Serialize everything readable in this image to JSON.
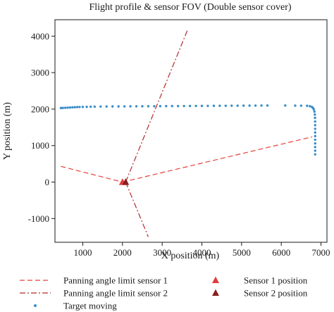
{
  "chart_data": {
    "type": "line",
    "title": "Flight profile & sensor FOV (Double sensor cover)",
    "xlabel": "X position (m)",
    "ylabel": "Y position (m)",
    "xlim": [
      300,
      7150
    ],
    "ylim": [
      -1650,
      4450
    ],
    "xticks": [
      1000,
      2000,
      3000,
      4000,
      5000,
      6000,
      7000
    ],
    "yticks": [
      -1000,
      0,
      1000,
      2000,
      3000,
      4000
    ],
    "grid": false,
    "legend_position": "bottom",
    "series": [
      {
        "name": "Panning angle limit sensor 1",
        "kind": "line",
        "style": "dashed",
        "color": "#e8403a",
        "segments": [
          [
            [
              450,
              430
            ],
            [
              2000,
              0
            ]
          ],
          [
            [
              2000,
              0
            ],
            [
              6780,
              1240
            ]
          ]
        ]
      },
      {
        "name": "Panning angle limit sensor 2",
        "kind": "line",
        "style": "dashdot",
        "color": "#b22a2a",
        "segments": [
          [
            [
              2080,
              0
            ],
            [
              3650,
              4200
            ]
          ],
          [
            [
              2080,
              0
            ],
            [
              2650,
              -1500
            ]
          ]
        ]
      },
      {
        "name": "Target moving",
        "kind": "scatter",
        "marker": "dot",
        "color": "#3a8ec8",
        "points": [
          [
            450,
            2030
          ],
          [
            500,
            2033
          ],
          [
            560,
            2036
          ],
          [
            620,
            2040
          ],
          [
            680,
            2044
          ],
          [
            740,
            2048
          ],
          [
            800,
            2052
          ],
          [
            860,
            2056
          ],
          [
            920,
            2058
          ],
          [
            1000,
            2060
          ],
          [
            1100,
            2062
          ],
          [
            1200,
            2065
          ],
          [
            1300,
            2068
          ],
          [
            1450,
            2070
          ],
          [
            1600,
            2072
          ],
          [
            1750,
            2073
          ],
          [
            1900,
            2074
          ],
          [
            2050,
            2075
          ],
          [
            2200,
            2076
          ],
          [
            2350,
            2077
          ],
          [
            2500,
            2078
          ],
          [
            2650,
            2079
          ],
          [
            2800,
            2080
          ],
          [
            2950,
            2081
          ],
          [
            3100,
            2082
          ],
          [
            3250,
            2083
          ],
          [
            3400,
            2084
          ],
          [
            3550,
            2085
          ],
          [
            3700,
            2086
          ],
          [
            3850,
            2087
          ],
          [
            4000,
            2088
          ],
          [
            4150,
            2089
          ],
          [
            4300,
            2090
          ],
          [
            4450,
            2091
          ],
          [
            4600,
            2092
          ],
          [
            4750,
            2093
          ],
          [
            4900,
            2094
          ],
          [
            5050,
            2095
          ],
          [
            5200,
            2096
          ],
          [
            5350,
            2097
          ],
          [
            5500,
            2098
          ],
          [
            5650,
            2098
          ],
          [
            6100,
            2098
          ],
          [
            6350,
            2096
          ],
          [
            6500,
            2094
          ],
          [
            6650,
            2090
          ],
          [
            6720,
            2080
          ],
          [
            6770,
            2060
          ],
          [
            6800,
            2030
          ],
          [
            6820,
            1990
          ],
          [
            6835,
            1930
          ],
          [
            6845,
            1850
          ],
          [
            6850,
            1760
          ],
          [
            6852,
            1660
          ],
          [
            6853,
            1560
          ],
          [
            6853,
            1460
          ],
          [
            6853,
            1360
          ],
          [
            6853,
            1260
          ],
          [
            6853,
            1160
          ],
          [
            6853,
            1060
          ],
          [
            6853,
            960
          ],
          [
            6853,
            860
          ],
          [
            6853,
            760
          ]
        ]
      },
      {
        "name": "Sensor 1 position",
        "kind": "scatter",
        "marker": "triangle",
        "color": "#e03a3a",
        "points": [
          [
            2000,
            0
          ]
        ]
      },
      {
        "name": "Sensor 2 position",
        "kind": "scatter",
        "marker": "triangle",
        "color": "#8b1e1e",
        "points": [
          [
            2080,
            0
          ]
        ]
      }
    ]
  }
}
